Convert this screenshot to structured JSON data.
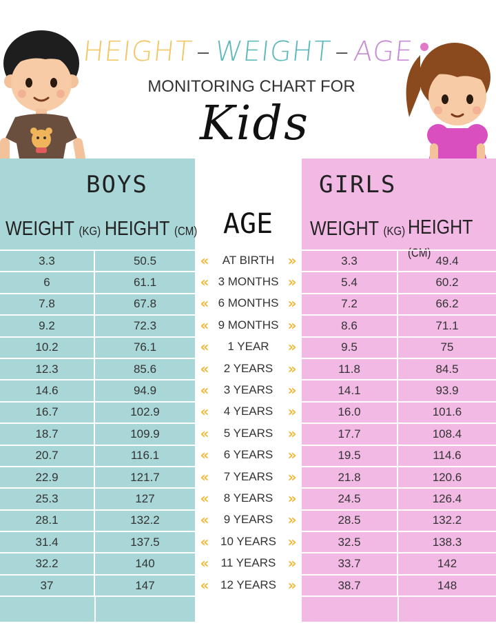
{
  "title": {
    "height_word": "HEIGHT",
    "dash1": "–",
    "weight_word": "WEIGHT",
    "dash2": "–",
    "age_word": "AGE",
    "subtitle": "MONITORING CHART FOR",
    "script_word": "Kids"
  },
  "boys": {
    "title": "BOYS",
    "weight_head": "WEIGHT",
    "weight_unit": "(KG)",
    "height_head": "HEIGHT",
    "height_unit": "(CM)"
  },
  "girls": {
    "title": "GIRLS",
    "weight_head": "WEIGHT",
    "weight_unit": "(KG)",
    "height_head": "HEIGHT",
    "height_unit": "(CM)"
  },
  "age_head": "AGE",
  "rows": [
    {
      "age": "AT BIRTH",
      "bw": "3.3",
      "bh": "50.5",
      "gw": "3.3",
      "gh": "49.4"
    },
    {
      "age": "3 MONTHS",
      "bw": "6",
      "bh": "61.1",
      "gw": "5.4",
      "gh": "60.2"
    },
    {
      "age": "6 MONTHS",
      "bw": "7.8",
      "bh": "67.8",
      "gw": "7.2",
      "gh": "66.2"
    },
    {
      "age": "9 MONTHS",
      "bw": "9.2",
      "bh": "72.3",
      "gw": "8.6",
      "gh": "71.1"
    },
    {
      "age": "1 YEAR",
      "bw": "10.2",
      "bh": "76.1",
      "gw": "9.5",
      "gh": "75"
    },
    {
      "age": "2 YEARS",
      "bw": "12.3",
      "bh": "85.6",
      "gw": "11.8",
      "gh": "84.5"
    },
    {
      "age": "3 YEARS",
      "bw": "14.6",
      "bh": "94.9",
      "gw": "14.1",
      "gh": "93.9"
    },
    {
      "age": "4 YEARS",
      "bw": "16.7",
      "bh": "102.9",
      "gw": "16.0",
      "gh": "101.6"
    },
    {
      "age": "5 YEARS",
      "bw": "18.7",
      "bh": "109.9",
      "gw": "17.7",
      "gh": "108.4"
    },
    {
      "age": "6 YEARS",
      "bw": "20.7",
      "bh": "116.1",
      "gw": "19.5",
      "gh": "114.6"
    },
    {
      "age": "7 YEARS",
      "bw": "22.9",
      "bh": "121.7",
      "gw": "21.8",
      "gh": "120.6"
    },
    {
      "age": "8 YEARS",
      "bw": "25.3",
      "bh": "127",
      "gw": "24.5",
      "gh": "126.4"
    },
    {
      "age": "9 YEARS",
      "bw": "28.1",
      "bh": "132.2",
      "gw": "28.5",
      "gh": "132.2"
    },
    {
      "age": "10 YEARS",
      "bw": "31.4",
      "bh": "137.5",
      "gw": "32.5",
      "gh": "138.3"
    },
    {
      "age": "11 YEARS",
      "bw": "32.2",
      "bh": "140",
      "gw": "33.7",
      "gh": "142"
    },
    {
      "age": "12 YEARS",
      "bw": "37",
      "bh": "147",
      "gw": "38.7",
      "gh": "148"
    }
  ],
  "chevron_left": "«",
  "chevron_right": "»",
  "colors": {
    "boys_bg": "#a9d6d6",
    "girls_bg": "#f2b9e4",
    "chevron": "#f0b93a",
    "title_height": "#f2c766",
    "title_weight": "#5fb9ba",
    "title_age": "#c88ad6"
  },
  "icons": [
    "boy-illustration-icon",
    "girl-illustration-icon",
    "chevron-left-icon",
    "chevron-right-icon"
  ]
}
